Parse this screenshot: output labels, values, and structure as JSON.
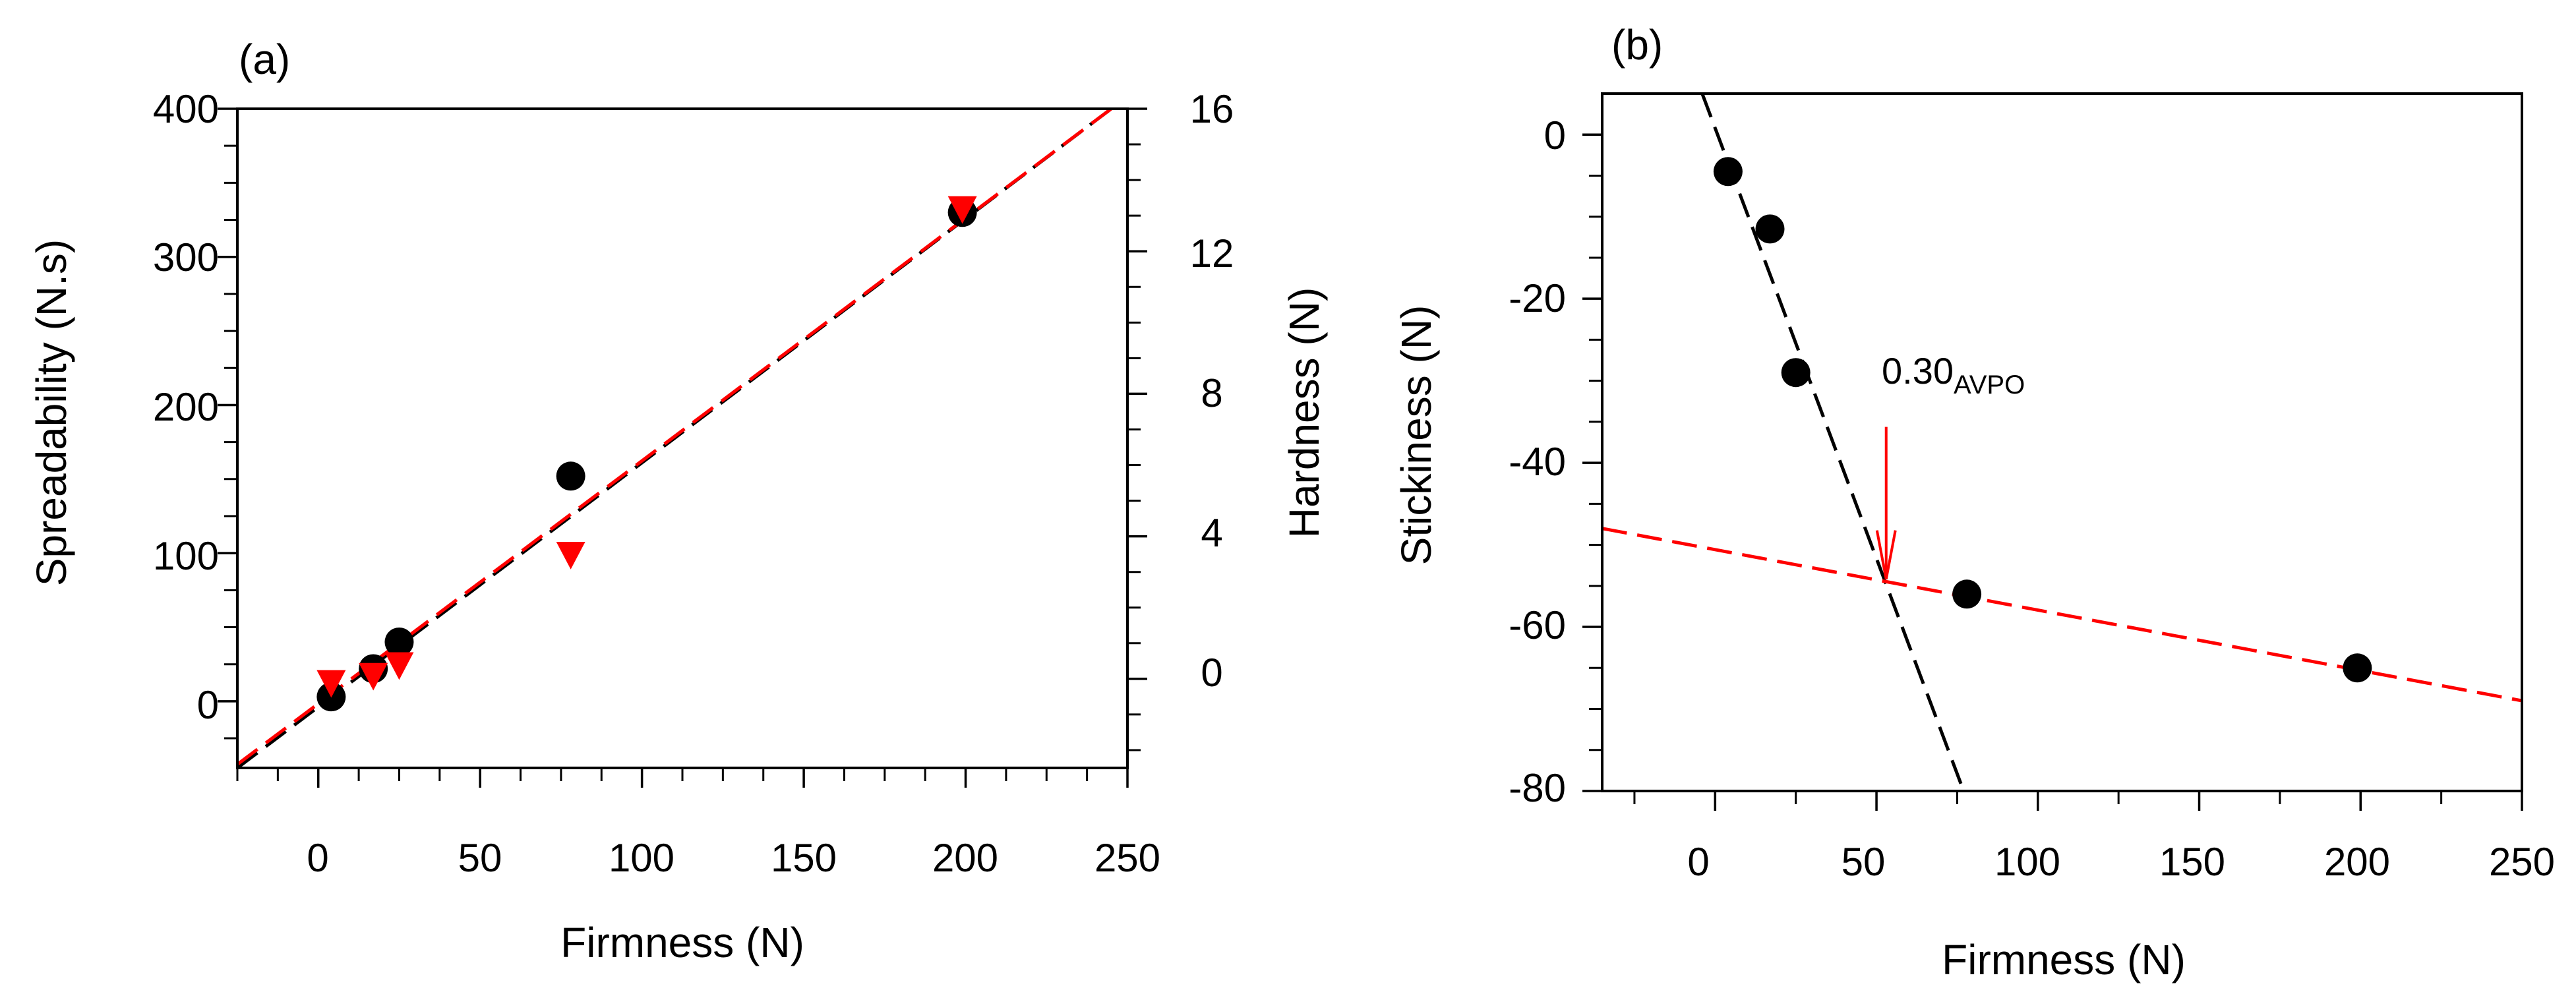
{
  "colors": {
    "black": "#000000",
    "red": "#ff0000"
  },
  "chart_data": [
    {
      "type": "scatter",
      "panel_label": "(a)",
      "xlabel": "Firmness (N)",
      "ylabel": "Spreadability (N.s)",
      "y2label": "Hardness (N)",
      "xlim": [
        -25,
        250
      ],
      "ylim": [
        -45,
        400
      ],
      "y2lim": [
        -2.5,
        16
      ],
      "xticks": [
        "0",
        "50",
        "100",
        "150",
        "200",
        "250"
      ],
      "yticks": [
        "0",
        "100",
        "200",
        "300",
        "400"
      ],
      "y2ticks": [
        "0",
        "4",
        "8",
        "12",
        "16"
      ],
      "series": [
        {
          "name": "Spreadability",
          "axis": "left",
          "marker": "circle",
          "color": "#000000",
          "points": [
            [
              4,
              3
            ],
            [
              17,
              22
            ],
            [
              25,
              40
            ],
            [
              78,
              152
            ],
            [
              199,
              330
            ]
          ],
          "fit_line": [
            [
              -25,
              -45
            ],
            [
              245,
              400
            ]
          ]
        },
        {
          "name": "Hardness",
          "axis": "right",
          "marker": "triangle-down",
          "color": "#ff0000",
          "points": [
            [
              4,
              -0.1
            ],
            [
              17,
              0.1
            ],
            [
              25,
              0.4
            ],
            [
              78,
              3.5
            ],
            [
              199,
              13.2
            ]
          ],
          "fit_line": [
            [
              -25,
              -2.4
            ],
            [
              245,
              16
            ]
          ]
        }
      ]
    },
    {
      "type": "scatter",
      "panel_label": "(b)",
      "xlabel": "Firmness (N)",
      "ylabel": "Stickiness (N)",
      "xlim": [
        -35,
        250
      ],
      "ylim": [
        -80,
        5
      ],
      "xticks": [
        "0",
        "50",
        "100",
        "150",
        "200",
        "250"
      ],
      "yticks": [
        "0",
        "-20",
        "-40",
        "-60",
        "-80"
      ],
      "annotation": {
        "main": "0.30",
        "sub": "AVPO",
        "x": 53,
        "y": -54.5
      },
      "series": [
        {
          "name": "Stickiness",
          "marker": "circle",
          "color": "#000000",
          "points": [
            [
              4,
              -4.5
            ],
            [
              17,
              -11.5
            ],
            [
              25,
              -29
            ],
            [
              78,
              -56
            ],
            [
              199,
              -65
            ]
          ]
        }
      ],
      "fit_lines": [
        {
          "color": "#000000",
          "points": [
            [
              -4,
              5
            ],
            [
              77,
              -80
            ]
          ]
        },
        {
          "color": "#ff0000",
          "points": [
            [
              -35,
              -48
            ],
            [
              250,
              -69
            ]
          ]
        }
      ]
    }
  ]
}
